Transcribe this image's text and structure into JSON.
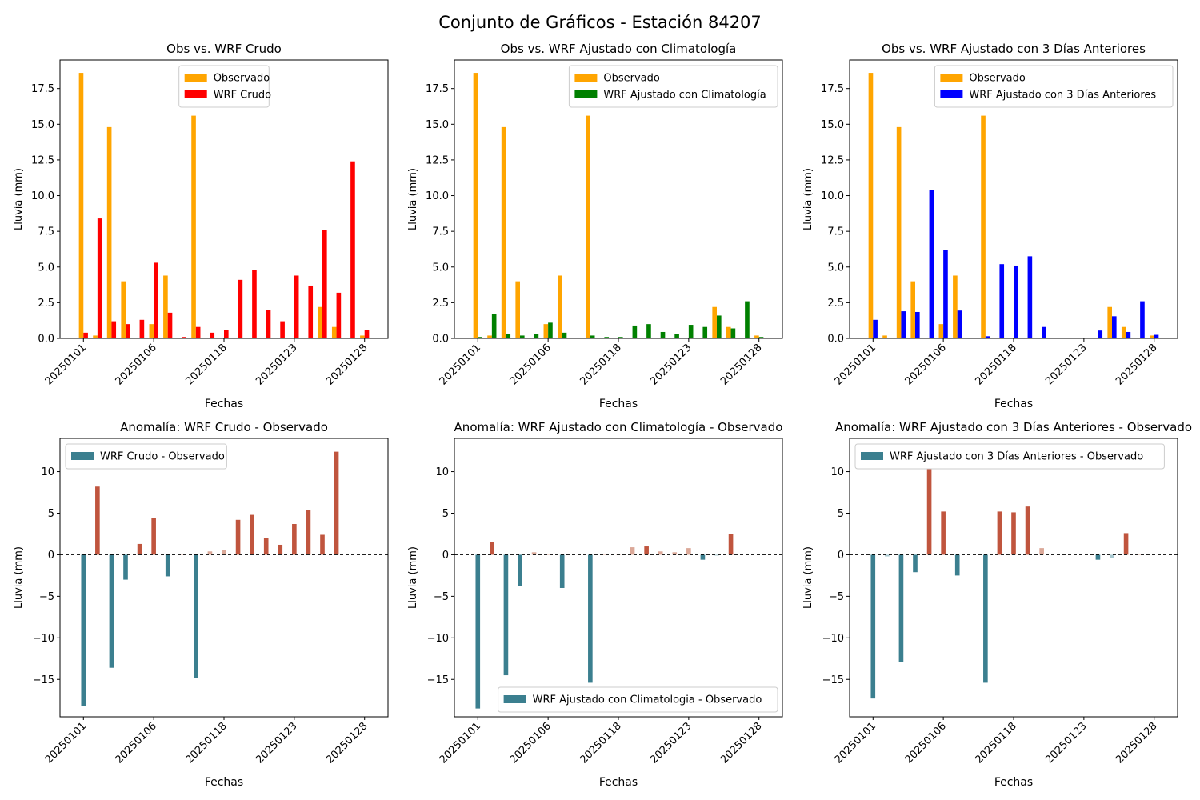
{
  "suptitle": "Conjunto de Gráficos - Estación 84207",
  "colors": {
    "observado": "#FFA500",
    "wrf_crudo": "#FF0000",
    "wrf_clima": "#008000",
    "wrf_3dias": "#0000FF",
    "anom_neg": "#3B7F8F",
    "anom_pos": "#C0553E",
    "anom_pos_light": "#DBA898",
    "anom_neg_light": "#A8C8D0"
  },
  "chart_data": [
    {
      "type": "bar",
      "title": "Obs vs. WRF Crudo",
      "xlabel": "Fechas",
      "ylabel": "Lluvia (mm)",
      "ylim": [
        0,
        19.5
      ],
      "yticks": [
        0,
        2.5,
        5,
        7.5,
        10,
        12.5,
        15,
        17.5
      ],
      "ytick_labels": [
        "0.0",
        "2.5",
        "5.0",
        "7.5",
        "10.0",
        "12.5",
        "15.0",
        "17.5"
      ],
      "xtick_labels": [
        "20250101",
        "20250106",
        "20250118",
        "20250123",
        "20250128"
      ],
      "xtick_index": [
        0,
        5,
        10,
        15,
        20
      ],
      "legend_position": "upper center",
      "series": [
        {
          "name": "Observado",
          "color_key": "observado",
          "values": [
            18.6,
            0.2,
            14.8,
            4.0,
            0.0,
            1.0,
            4.4,
            0.0,
            15.6,
            0.0,
            0.0,
            0.0,
            0.0,
            0.0,
            0.0,
            0.0,
            0.0,
            2.2,
            0.8,
            0.0,
            0.2
          ]
        },
        {
          "name": "WRF Crudo",
          "color_key": "wrf_crudo",
          "values": [
            0.4,
            8.4,
            1.2,
            1.0,
            1.3,
            5.3,
            1.8,
            0.1,
            0.8,
            0.4,
            0.6,
            4.1,
            4.8,
            2.0,
            1.2,
            4.4,
            3.7,
            7.6,
            3.2,
            12.4,
            0.6
          ]
        }
      ]
    },
    {
      "type": "bar",
      "title": "Obs vs. WRF Ajustado con Climatología",
      "xlabel": "Fechas",
      "ylabel": "Lluvia (mm)",
      "ylim": [
        0,
        19.5
      ],
      "yticks": [
        0,
        2.5,
        5,
        7.5,
        10,
        12.5,
        15,
        17.5
      ],
      "ytick_labels": [
        "0.0",
        "2.5",
        "5.0",
        "7.5",
        "10.0",
        "12.5",
        "15.0",
        "17.5"
      ],
      "xtick_labels": [
        "20250101",
        "20250106",
        "20250118",
        "20250123",
        "20250128"
      ],
      "xtick_index": [
        0,
        5,
        10,
        15,
        20
      ],
      "legend_position": "upper right",
      "series": [
        {
          "name": "Observado",
          "color_key": "observado",
          "values": [
            18.6,
            0.2,
            14.8,
            4.0,
            0.0,
            1.0,
            4.4,
            0.0,
            15.6,
            0.0,
            0.0,
            0.0,
            0.0,
            0.0,
            0.0,
            0.0,
            0.0,
            2.2,
            0.8,
            0.0,
            0.2
          ]
        },
        {
          "name": "WRF Ajustado con Climatología",
          "color_key": "wrf_clima",
          "values": [
            0.1,
            1.7,
            0.3,
            0.2,
            0.3,
            1.1,
            0.4,
            0.0,
            0.2,
            0.1,
            0.1,
            0.9,
            1.0,
            0.45,
            0.3,
            0.95,
            0.8,
            1.6,
            0.7,
            2.6,
            0.1
          ]
        }
      ]
    },
    {
      "type": "bar",
      "title": "Obs vs. WRF Ajustado con 3 Días Anteriores",
      "xlabel": "Fechas",
      "ylabel": "Lluvia (mm)",
      "ylim": [
        0,
        19.5
      ],
      "yticks": [
        0,
        2.5,
        5,
        7.5,
        10,
        12.5,
        15,
        17.5
      ],
      "ytick_labels": [
        "0.0",
        "2.5",
        "5.0",
        "7.5",
        "10.0",
        "12.5",
        "15.0",
        "17.5"
      ],
      "xtick_labels": [
        "20250101",
        "20250106",
        "20250118",
        "20250123",
        "20250128"
      ],
      "xtick_index": [
        0,
        5,
        10,
        15,
        20
      ],
      "legend_position": "upper right",
      "series": [
        {
          "name": "Observado",
          "color_key": "observado",
          "values": [
            18.6,
            0.2,
            14.8,
            4.0,
            0.0,
            1.0,
            4.4,
            0.0,
            15.6,
            0.0,
            0.0,
            0.0,
            0.0,
            0.0,
            0.0,
            0.0,
            0.0,
            2.2,
            0.8,
            0.0,
            0.2
          ]
        },
        {
          "name": "WRF Ajustado con 3 Días Anteriores",
          "color_key": "wrf_3dias",
          "values": [
            1.3,
            0.0,
            1.9,
            1.85,
            10.4,
            6.2,
            1.95,
            0.0,
            0.15,
            5.2,
            5.1,
            5.75,
            0.8,
            0.0,
            0.0,
            0.0,
            0.55,
            1.55,
            0.45,
            2.6,
            0.25
          ]
        }
      ]
    },
    {
      "type": "bar",
      "title": "Anomalía: WRF Crudo - Observado",
      "xlabel": "Fechas",
      "ylabel": "Lluvia (mm)",
      "ylim": [
        -19.5,
        14
      ],
      "yticks": [
        -15,
        -10,
        -5,
        0,
        5,
        10
      ],
      "ytick_labels": [
        "−15",
        "−10",
        "−5",
        "0",
        "5",
        "10"
      ],
      "xtick_labels": [
        "20250101",
        "20250106",
        "20250118",
        "20250123",
        "20250128"
      ],
      "xtick_index": [
        0,
        5,
        10,
        15,
        20
      ],
      "legend_position": "upper left",
      "zero_line": true,
      "series": [
        {
          "name": "WRF Crudo - Observado",
          "color_key": "anom_neg",
          "values": [
            -18.2,
            8.2,
            -13.6,
            -3.0,
            1.3,
            4.4,
            -2.6,
            0.1,
            -14.8,
            0.4,
            0.6,
            4.2,
            4.8,
            2.0,
            1.2,
            3.7,
            5.4,
            2.4,
            12.4,
            0.0,
            0.0
          ]
        }
      ]
    },
    {
      "type": "bar",
      "title": "Anomalía: WRF Ajustado con Climatología - Observado",
      "xlabel": "Fechas",
      "ylabel": "Lluvia (mm)",
      "ylim": [
        -19.5,
        14
      ],
      "yticks": [
        -15,
        -10,
        -5,
        0,
        5,
        10
      ],
      "ytick_labels": [
        "−15",
        "−10",
        "−5",
        "0",
        "5",
        "10"
      ],
      "xtick_labels": [
        "20250101",
        "20250106",
        "20250118",
        "20250123",
        "20250128"
      ],
      "xtick_index": [
        0,
        5,
        10,
        15,
        20
      ],
      "legend_position": "lower right",
      "zero_line": true,
      "series": [
        {
          "name": "WRF Ajustado con Climatologia - Observado",
          "color_key": "anom_neg",
          "values": [
            -18.5,
            1.5,
            -14.5,
            -3.8,
            0.3,
            0.1,
            -4.0,
            0.0,
            -15.4,
            0.1,
            0.1,
            0.9,
            1.0,
            0.4,
            0.3,
            0.8,
            -0.6,
            -0.1,
            2.5,
            0.0,
            0.0
          ]
        }
      ]
    },
    {
      "type": "bar",
      "title": "Anomalía: WRF Ajustado con 3 Días Anteriores - Observado",
      "xlabel": "Fechas",
      "ylabel": "Lluvia (mm)",
      "ylim": [
        -19.5,
        14
      ],
      "yticks": [
        -15,
        -10,
        -5,
        0,
        5,
        10
      ],
      "ytick_labels": [
        "−15",
        "−10",
        "−5",
        "0",
        "5",
        "10"
      ],
      "xtick_labels": [
        "20250101",
        "20250106",
        "20250118",
        "20250123",
        "20250128"
      ],
      "xtick_index": [
        0,
        5,
        10,
        15,
        20
      ],
      "legend_position": "upper left",
      "zero_line": true,
      "series": [
        {
          "name": "WRF Ajustado con 3 Días Anteriores - Observado",
          "color_key": "anom_neg",
          "values": [
            -17.3,
            -0.2,
            -12.9,
            -2.1,
            10.4,
            5.2,
            -2.5,
            0.0,
            -15.4,
            5.2,
            5.1,
            5.8,
            0.8,
            0.0,
            0.0,
            0.0,
            -0.6,
            -0.4,
            2.6,
            0.1,
            0.0
          ]
        }
      ]
    }
  ]
}
